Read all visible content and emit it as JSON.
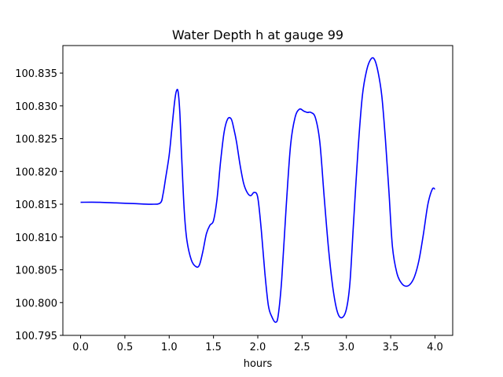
{
  "chart_data": {
    "type": "line",
    "title": "Water Depth h at gauge 99",
    "xlabel": "hours",
    "ylabel": "",
    "xlim": [
      -0.2,
      4.2
    ],
    "ylim": [
      100.795,
      100.8392
    ],
    "xticks": [
      0.0,
      0.5,
      1.0,
      1.5,
      2.0,
      2.5,
      3.0,
      3.5,
      4.0
    ],
    "xtick_labels": [
      "0.0",
      "0.5",
      "1.0",
      "1.5",
      "2.0",
      "2.5",
      "3.0",
      "3.5",
      "4.0"
    ],
    "yticks": [
      100.795,
      100.8,
      100.805,
      100.81,
      100.815,
      100.82,
      100.825,
      100.83,
      100.835
    ],
    "ytick_labels": [
      "100.795",
      "100.800",
      "100.805",
      "100.810",
      "100.815",
      "100.820",
      "100.825",
      "100.830",
      "100.835"
    ],
    "grid": false,
    "series": [
      {
        "color": "#0000ff",
        "x": [
          0.0,
          0.2,
          0.4,
          0.6,
          0.8,
          0.9,
          0.93,
          0.96,
          1.0,
          1.03,
          1.06,
          1.08,
          1.1,
          1.12,
          1.14,
          1.17,
          1.2,
          1.25,
          1.3,
          1.34,
          1.38,
          1.42,
          1.46,
          1.5,
          1.54,
          1.58,
          1.62,
          1.66,
          1.7,
          1.73,
          1.76,
          1.8,
          1.84,
          1.88,
          1.92,
          1.96,
          2.0,
          2.04,
          2.08,
          2.12,
          2.16,
          2.2,
          2.23,
          2.27,
          2.32,
          2.37,
          2.42,
          2.47,
          2.52,
          2.56,
          2.6,
          2.65,
          2.7,
          2.75,
          2.8,
          2.85,
          2.9,
          2.95,
          3.0,
          3.04,
          3.08,
          3.13,
          3.18,
          3.23,
          3.28,
          3.32,
          3.36,
          3.4,
          3.44,
          3.48,
          3.52,
          3.57,
          3.62,
          3.67,
          3.72,
          3.77,
          3.82,
          3.87,
          3.92,
          3.97,
          4.0
        ],
        "y": [
          100.8153,
          100.8153,
          100.8152,
          100.8151,
          100.815,
          100.8152,
          100.8165,
          100.819,
          100.8225,
          100.8265,
          100.8305,
          100.8322,
          100.8322,
          100.829,
          100.8225,
          100.814,
          100.8095,
          100.8065,
          100.8055,
          100.8057,
          100.8078,
          100.8105,
          100.8118,
          100.8125,
          100.8158,
          100.8215,
          100.826,
          100.828,
          100.828,
          100.8265,
          100.8245,
          100.821,
          100.8182,
          100.8168,
          100.8163,
          100.8168,
          100.816,
          100.811,
          100.8045,
          100.7995,
          100.7978,
          100.797,
          100.798,
          100.8035,
          100.8145,
          100.824,
          100.8282,
          100.8295,
          100.8292,
          100.829,
          100.829,
          100.8282,
          100.8245,
          100.816,
          100.808,
          100.802,
          100.7985,
          100.7977,
          100.799,
          100.803,
          100.812,
          100.823,
          100.8315,
          100.8355,
          100.8372,
          100.837,
          100.835,
          100.8315,
          100.825,
          100.817,
          100.8085,
          100.8045,
          100.803,
          100.8025,
          100.8028,
          100.804,
          100.8065,
          100.8105,
          100.815,
          100.8173,
          100.8173
        ]
      }
    ]
  }
}
